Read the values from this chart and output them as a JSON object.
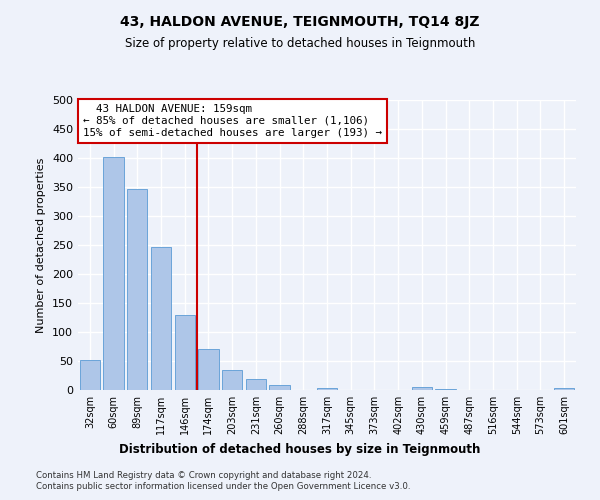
{
  "title": "43, HALDON AVENUE, TEIGNMOUTH, TQ14 8JZ",
  "subtitle": "Size of property relative to detached houses in Teignmouth",
  "xlabel": "Distribution of detached houses by size in Teignmouth",
  "ylabel": "Number of detached properties",
  "bar_color": "#aec6e8",
  "bar_edge_color": "#5b9bd5",
  "categories": [
    "32sqm",
    "60sqm",
    "89sqm",
    "117sqm",
    "146sqm",
    "174sqm",
    "203sqm",
    "231sqm",
    "260sqm",
    "288sqm",
    "317sqm",
    "345sqm",
    "373sqm",
    "402sqm",
    "430sqm",
    "459sqm",
    "487sqm",
    "516sqm",
    "544sqm",
    "573sqm",
    "601sqm"
  ],
  "values": [
    52,
    402,
    346,
    247,
    130,
    70,
    35,
    19,
    8,
    0,
    4,
    0,
    0,
    0,
    6,
    2,
    0,
    0,
    0,
    0,
    4
  ],
  "ylim": [
    0,
    500
  ],
  "yticks": [
    0,
    50,
    100,
    150,
    200,
    250,
    300,
    350,
    400,
    450,
    500
  ],
  "property_line_x": 4.5,
  "annotation_text": "  43 HALDON AVENUE: 159sqm\n← 85% of detached houses are smaller (1,106)\n15% of semi-detached houses are larger (193) →",
  "annotation_box_color": "#ffffff",
  "annotation_box_edge": "#cc0000",
  "vline_color": "#cc0000",
  "footer_line1": "Contains HM Land Registry data © Crown copyright and database right 2024.",
  "footer_line2": "Contains public sector information licensed under the Open Government Licence v3.0.",
  "bg_color": "#eef2fa",
  "grid_color": "#ffffff"
}
